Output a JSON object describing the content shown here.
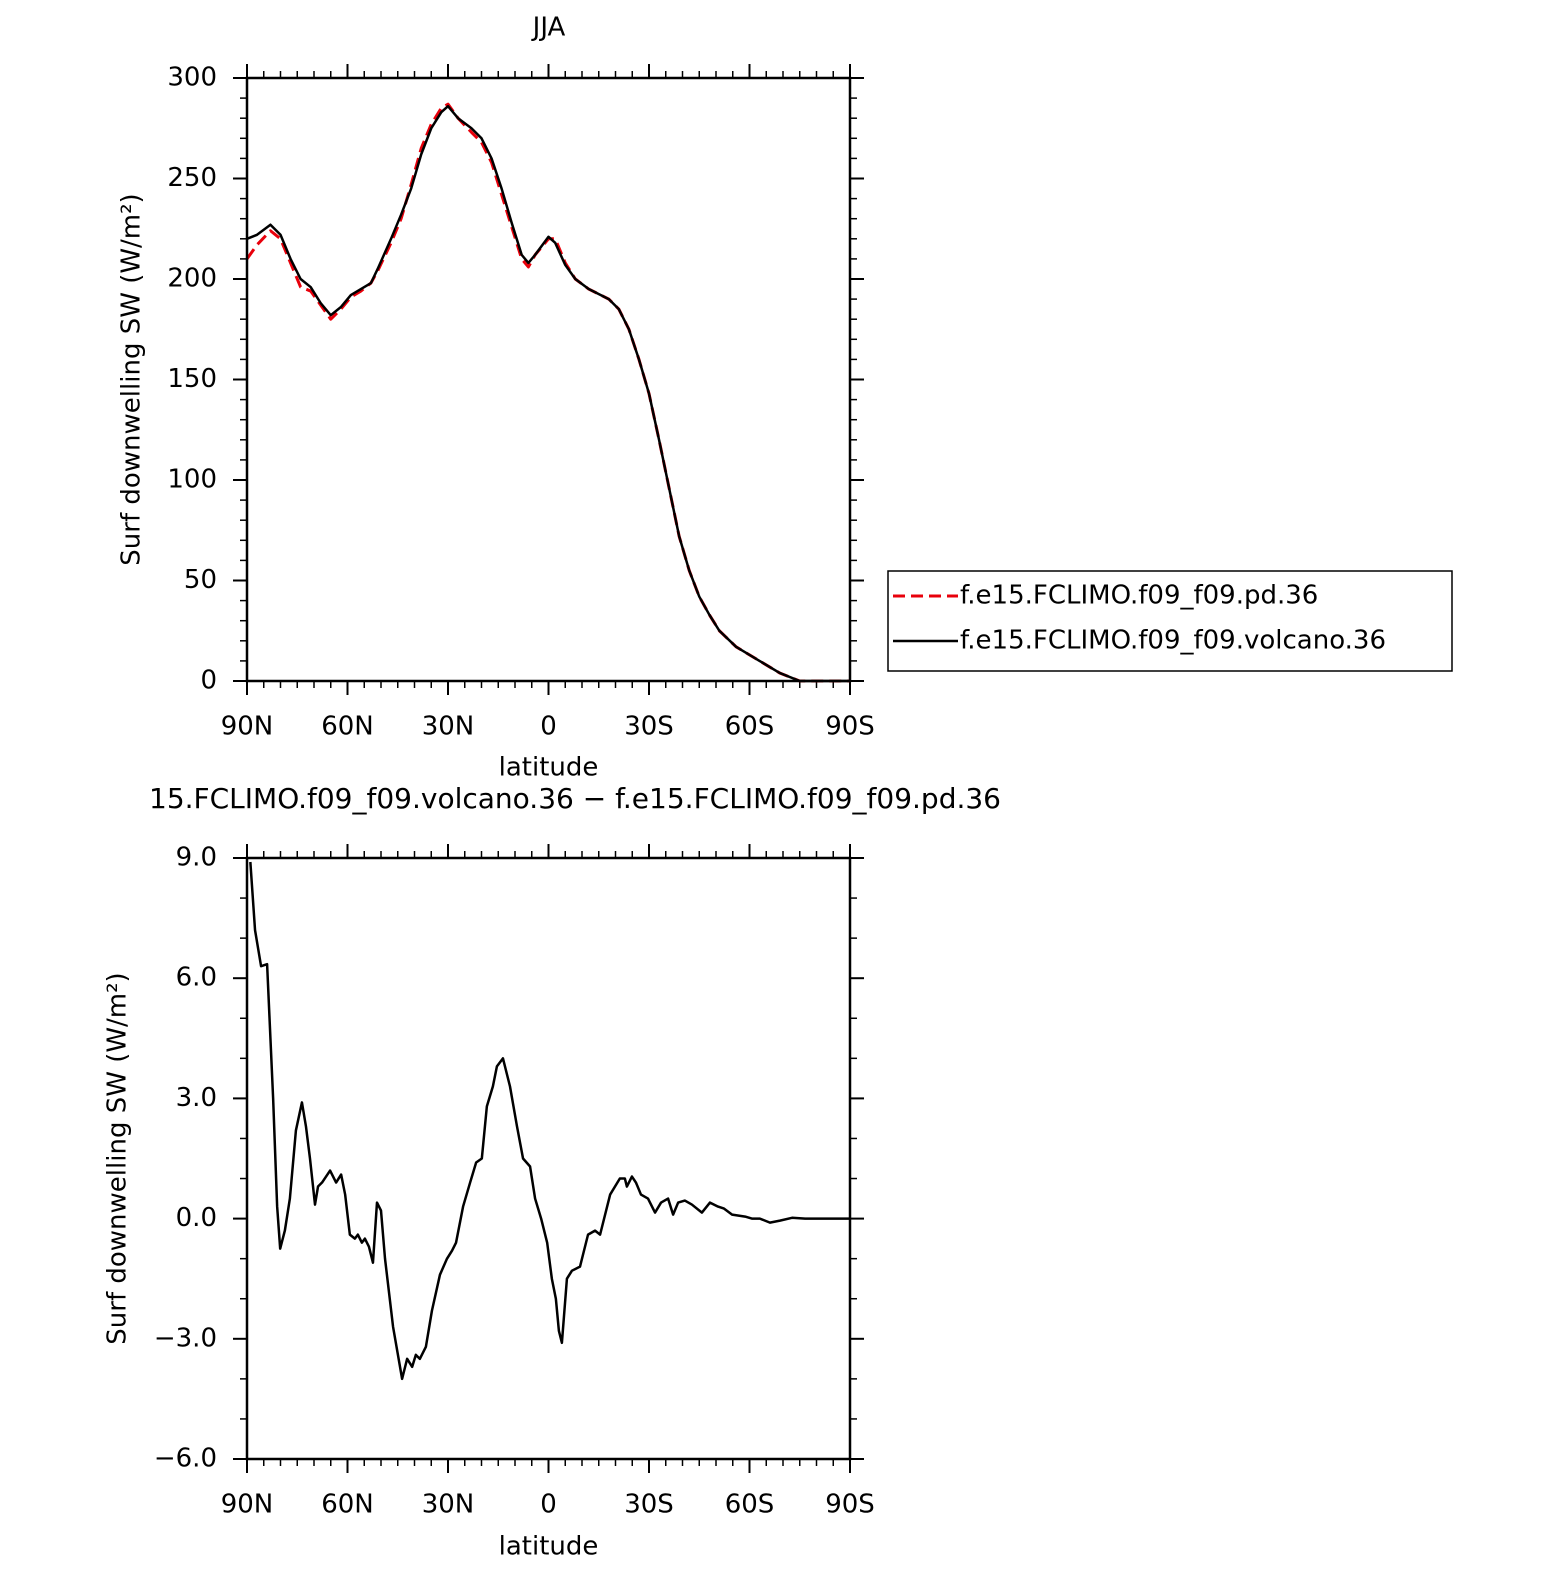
{
  "chart_data": [
    {
      "type": "line",
      "title": "JJA",
      "x_label": "latitude",
      "y_label": "Surf downwelling SW (W/m²)",
      "xlim": [
        90,
        -90
      ],
      "xticks": [
        {
          "value": 90,
          "label": "90N"
        },
        {
          "value": 60,
          "label": "60N"
        },
        {
          "value": 30,
          "label": "30N"
        },
        0,
        {
          "value": -30,
          "label": "30S"
        },
        {
          "value": -60,
          "label": "60S"
        },
        {
          "value": -90,
          "label": "90S"
        }
      ],
      "ylim": [
        0,
        300
      ],
      "yticks": [
        0,
        50,
        100,
        150,
        200,
        250,
        300
      ],
      "legend": "right",
      "x": [
        90,
        87,
        83,
        80,
        77,
        74,
        71,
        68,
        65,
        62,
        59,
        56,
        53,
        51,
        47,
        44,
        41,
        38,
        35,
        32,
        30,
        27,
        23,
        20,
        17,
        14,
        11,
        8,
        6,
        4,
        0,
        -2,
        -5,
        -8,
        -12,
        -18,
        -21,
        -24,
        -27,
        -30,
        -33,
        -36,
        -39,
        -42,
        -45,
        -48,
        -51,
        -56,
        -63,
        -69,
        -75,
        -90
      ],
      "series": [
        {
          "name": "f.e15.FCLIMO.f09_f09.pd.36",
          "color": "#e8000b",
          "style": "dashed",
          "values": [
            210,
            217,
            224,
            220,
            208,
            196,
            194,
            187,
            180,
            185,
            191,
            194,
            198,
            204,
            218,
            230,
            247,
            265,
            277,
            285,
            287,
            280,
            273,
            268,
            258,
            242,
            226,
            210,
            206,
            212,
            220,
            220,
            208,
            200,
            195,
            190,
            185,
            175,
            160,
            143,
            120,
            96,
            72,
            55,
            42,
            33,
            25,
            17,
            10,
            4,
            0,
            0
          ]
        },
        {
          "name": "f.e15.FCLIMO.f09_f09.volcano.36",
          "color": "#000000",
          "style": "solid",
          "values": [
            220,
            222,
            227,
            222,
            210,
            200,
            196,
            188,
            182,
            186,
            192,
            195,
            198,
            205,
            220,
            232,
            245,
            262,
            275,
            283,
            286,
            280,
            275,
            270,
            260,
            245,
            228,
            212,
            208,
            212,
            221,
            218,
            207,
            200,
            195,
            190,
            185,
            175,
            160,
            143,
            120,
            96,
            72,
            55,
            42,
            33,
            25,
            17,
            10,
            4,
            0,
            0
          ]
        }
      ]
    },
    {
      "type": "line",
      "title": "15.FCLIMO.f09_f09.volcano.36 − f.e15.FCLIMO.f09_f09.pd.36",
      "x_label": "latitude",
      "y_label": "Surf downwelling SW (W/m²)",
      "xlim": [
        90,
        -90
      ],
      "xticks": [
        {
          "value": 90,
          "label": "90N"
        },
        {
          "value": 60,
          "label": "60N"
        },
        {
          "value": 30,
          "label": "30N"
        },
        0,
        {
          "value": -30,
          "label": "30S"
        },
        {
          "value": -60,
          "label": "60S"
        },
        {
          "value": -90,
          "label": "90S"
        }
      ],
      "ylim": [
        -6,
        9
      ],
      "yticks": [
        {
          "value": -6,
          "label": "−6.0"
        },
        {
          "value": -3,
          "label": "−3.0"
        },
        {
          "value": 0,
          "label": "0.0"
        },
        {
          "value": 3,
          "label": "3.0"
        },
        {
          "value": 6,
          "label": "6.0"
        },
        {
          "value": 9,
          "label": "9.0"
        }
      ],
      "x": [
        89,
        87.6,
        85.8,
        84,
        82.2,
        81,
        80.1,
        78.7,
        77.2,
        75.4,
        73.6,
        72.4,
        71.2,
        69.7,
        68.8,
        67.6,
        65.2,
        63.4,
        61.9,
        60.7,
        59.3,
        57.8,
        56.9,
        55.7,
        54.8,
        53.6,
        52.4,
        51.2,
        50,
        48.8,
        46.4,
        43.7,
        42.2,
        40.7,
        39.6,
        38.4,
        36.6,
        34.8,
        32.4,
        30.3,
        28.8,
        27.6,
        25.5,
        23.4,
        21.6,
        19.9,
        18.4,
        16.6,
        15.4,
        13.6,
        11.5,
        9.4,
        7.6,
        5.5,
        4,
        2.2,
        0.4,
        -1,
        -2.2,
        -3.1,
        -4,
        -5.5,
        -7,
        -9.4,
        -11.8,
        -13.9,
        -15.4,
        -18.4,
        -21.3,
        -22.8,
        -23.4,
        -24.9,
        -26.1,
        -27.6,
        -29.7,
        -31.8,
        -33.6,
        -35.7,
        -37.2,
        -38.7,
        -40.7,
        -42.8,
        -45.8,
        -48.2,
        -50.6,
        -52.4,
        -54.8,
        -58.7,
        -60.7,
        -63.1,
        -66.1,
        -69.1,
        -72.7,
        -76.6,
        -90
      ],
      "series": [
        {
          "color": "#000000",
          "style": "solid",
          "values": [
            8.9,
            7.2,
            6.3,
            6.35,
            3,
            0.3,
            -0.75,
            -0.3,
            0.5,
            2.2,
            2.9,
            2.3,
            1.5,
            0.35,
            0.8,
            0.9,
            1.2,
            0.9,
            1.1,
            0.6,
            -0.4,
            -0.5,
            -0.4,
            -0.6,
            -0.5,
            -0.7,
            -1.1,
            0.4,
            0.2,
            -1,
            -2.7,
            -4,
            -3.5,
            -3.7,
            -3.4,
            -3.5,
            -3.2,
            -2.3,
            -1.4,
            -1,
            -0.8,
            -0.6,
            0.3,
            0.9,
            1.4,
            1.5,
            2.8,
            3.3,
            3.8,
            4,
            3.3,
            2.3,
            1.5,
            1.3,
            0.5,
            0,
            -0.6,
            -1.5,
            -2,
            -2.8,
            -3.1,
            -1.5,
            -1.3,
            -1.2,
            -0.4,
            -0.3,
            -0.4,
            0.6,
            1,
            1,
            0.8,
            1.05,
            0.9,
            0.6,
            0.5,
            0.15,
            0.4,
            0.5,
            0.1,
            0.4,
            0.45,
            0.35,
            0.15,
            0.4,
            0.3,
            0.25,
            0.1,
            0.05,
            0,
            0,
            -0.1,
            -0.05,
            0.02,
            0,
            0
          ]
        }
      ]
    }
  ]
}
